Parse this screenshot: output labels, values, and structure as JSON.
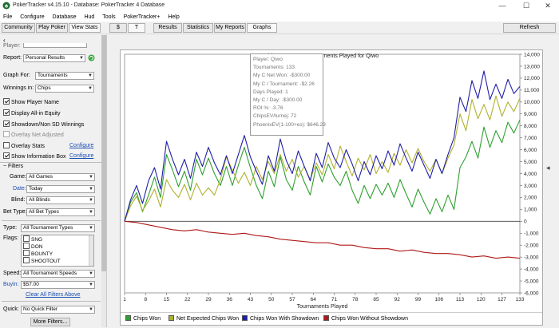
{
  "window": {
    "title": "PokerTracker v4.15.10 - Database: PokerTracker 4 Database",
    "controls": [
      "—",
      "☐",
      "✕"
    ]
  },
  "menu": [
    "File",
    "Configure",
    "Database",
    "Hud",
    "Tools",
    "PokerTracker+",
    "Help"
  ],
  "toolbar": {
    "tabs": [
      "Community",
      "Play Poker",
      "View Stats"
    ],
    "game_toggle": [
      "$",
      "T"
    ],
    "report_tabs": [
      "Results",
      "Statistics",
      "My Reports",
      "Graphs"
    ],
    "refresh": "Refresh"
  },
  "left_panel": {
    "player_label": "Player:",
    "report_label": "Report:",
    "report_value": "Personal Results",
    "graph_for_label": "Graph For:",
    "graph_for_value": "Tournaments",
    "winnings_in_label": "Winnings in:",
    "winnings_in_value": "Chips",
    "options": [
      {
        "label": "Show Player Name",
        "checked": true,
        "disabled": false
      },
      {
        "label": "Display All-in Equity",
        "checked": true,
        "disabled": false
      },
      {
        "label": "Showdown/Non SD Winnings",
        "checked": true,
        "disabled": false
      },
      {
        "label": "Overlay Net Adjusted",
        "checked": false,
        "disabled": true
      },
      {
        "label": "Overlay Stats",
        "checked": false,
        "disabled": false
      },
      {
        "label": "Show Information Box",
        "checked": true,
        "disabled": false
      }
    ],
    "configure": "Configure",
    "filters_header": "Filters",
    "game_label": "Game:",
    "game_value": "All Games",
    "date_label": "Date:",
    "date_value": "Today",
    "blind_label": "Blind:",
    "blind_value": "All Blinds",
    "bet_type_label": "Bet Type:",
    "bet_type_value": "All Bet Types",
    "type_label": "Type:",
    "type_value": "All Tournament Types",
    "flags_label": "Flags:",
    "flags": [
      "SNG",
      "DON",
      "BOUNTY",
      "SHOOTOUT"
    ],
    "speed_label": "Speed:",
    "speed_value": "All Tournament Speeds",
    "buyin_label": "Buyin:",
    "buyin_value": "$57.00",
    "clear_filters": "Clear All Filters Above",
    "quick_label": "Quick:",
    "quick_value": "No Quick Filter",
    "more_filters": "More Filters..."
  },
  "info_box": {
    "lines": [
      "Player: Qiwo",
      "Tournaments: 133",
      "My C Net Won: -$300.00",
      "My C / Tournament: -$2.26",
      "Days Played: 1",
      "My C / Day: -$300.00",
      "ROI %: -3.76",
      "ChipsEV/turnej: 72",
      "PhoenixEV(1-100+es): $646.23"
    ]
  },
  "colors": {
    "chips_won": "#2ea02e",
    "net_expected": "#b0b030",
    "with_showdown": "#1f1fa8",
    "without_showdown": "#b01818"
  },
  "chart_data": {
    "type": "line",
    "title": "Chips Won over Tournaments Played for  Qiwo",
    "xlabel": "Tournaments Played",
    "ylabel": "",
    "x_ticks": [
      "1",
      "8",
      "15",
      "22",
      "29",
      "36",
      "43",
      "50",
      "57",
      "64",
      "71",
      "78",
      "85",
      "92",
      "99",
      "106",
      "113",
      "120",
      "127",
      "133"
    ],
    "y_ticks": [
      "14,000",
      "13,000",
      "12,000",
      "11,000",
      "10,000",
      "9,000",
      "8,000",
      "7,000",
      "6,000",
      "5,000",
      "4,000",
      "3,000",
      "2,000",
      "1,000",
      "0",
      "-1,000",
      "-2,000",
      "-3,000",
      "-4,000",
      "-5,000",
      "-6,000"
    ],
    "xlim": [
      1,
      133
    ],
    "ylim": [
      -6000,
      14000
    ],
    "series": [
      {
        "name": "Chips Won",
        "color": "#2ea02e",
        "points": [
          [
            1,
            0
          ],
          [
            3,
            1600
          ],
          [
            5,
            2400
          ],
          [
            7,
            800
          ],
          [
            9,
            2200
          ],
          [
            11,
            3700
          ],
          [
            13,
            2000
          ],
          [
            15,
            5600
          ],
          [
            17,
            4300
          ],
          [
            19,
            2900
          ],
          [
            21,
            4200
          ],
          [
            23,
            2600
          ],
          [
            25,
            5200
          ],
          [
            27,
            3900
          ],
          [
            29,
            5300
          ],
          [
            31,
            4000
          ],
          [
            33,
            3000
          ],
          [
            35,
            4600
          ],
          [
            37,
            3000
          ],
          [
            39,
            4700
          ],
          [
            41,
            6200
          ],
          [
            43,
            4500
          ],
          [
            45,
            3000
          ],
          [
            47,
            1900
          ],
          [
            49,
            4200
          ],
          [
            51,
            2900
          ],
          [
            53,
            5400
          ],
          [
            55,
            3500
          ],
          [
            57,
            2600
          ],
          [
            59,
            4600
          ],
          [
            61,
            3300
          ],
          [
            63,
            2200
          ],
          [
            65,
            4600
          ],
          [
            67,
            3300
          ],
          [
            69,
            4800
          ],
          [
            71,
            3700
          ],
          [
            73,
            3000
          ],
          [
            75,
            4200
          ],
          [
            77,
            2600
          ],
          [
            79,
            1500
          ],
          [
            81,
            3000
          ],
          [
            83,
            1900
          ],
          [
            85,
            3100
          ],
          [
            87,
            2200
          ],
          [
            89,
            3200
          ],
          [
            91,
            2000
          ],
          [
            93,
            3500
          ],
          [
            95,
            2300
          ],
          [
            97,
            1200
          ],
          [
            99,
            2700
          ],
          [
            101,
            1600
          ],
          [
            103,
            600
          ],
          [
            105,
            1900
          ],
          [
            107,
            800
          ],
          [
            109,
            2200
          ],
          [
            111,
            1000
          ],
          [
            113,
            4500
          ],
          [
            115,
            5400
          ],
          [
            117,
            6700
          ],
          [
            119,
            5300
          ],
          [
            121,
            7900
          ],
          [
            123,
            6200
          ],
          [
            125,
            7600
          ],
          [
            127,
            6600
          ],
          [
            129,
            8300
          ],
          [
            131,
            7400
          ],
          [
            133,
            8500
          ]
        ]
      },
      {
        "name": "Net Expected Chips Won",
        "color": "#b0b030",
        "points": [
          [
            1,
            0
          ],
          [
            3,
            1300
          ],
          [
            5,
            2100
          ],
          [
            7,
            900
          ],
          [
            9,
            1700
          ],
          [
            11,
            2700
          ],
          [
            13,
            1200
          ],
          [
            15,
            3500
          ],
          [
            17,
            2600
          ],
          [
            19,
            2000
          ],
          [
            21,
            3100
          ],
          [
            23,
            1800
          ],
          [
            25,
            3200
          ],
          [
            27,
            2200
          ],
          [
            29,
            2800
          ],
          [
            31,
            2200
          ],
          [
            33,
            3500
          ],
          [
            35,
            5400
          ],
          [
            37,
            4300
          ],
          [
            39,
            3200
          ],
          [
            41,
            4100
          ],
          [
            43,
            3000
          ],
          [
            45,
            4600
          ],
          [
            47,
            3500
          ],
          [
            49,
            5000
          ],
          [
            51,
            4000
          ],
          [
            53,
            5600
          ],
          [
            55,
            4200
          ],
          [
            57,
            5200
          ],
          [
            59,
            3700
          ],
          [
            61,
            4600
          ],
          [
            63,
            3500
          ],
          [
            65,
            4900
          ],
          [
            67,
            3900
          ],
          [
            69,
            5600
          ],
          [
            71,
            4400
          ],
          [
            73,
            6300
          ],
          [
            75,
            5000
          ],
          [
            77,
            3800
          ],
          [
            79,
            5300
          ],
          [
            81,
            4300
          ],
          [
            83,
            5600
          ],
          [
            85,
            4000
          ],
          [
            87,
            5000
          ],
          [
            89,
            4100
          ],
          [
            91,
            5700
          ],
          [
            93,
            4700
          ],
          [
            95,
            6000
          ],
          [
            97,
            4900
          ],
          [
            99,
            6100
          ],
          [
            101,
            5000
          ],
          [
            103,
            4200
          ],
          [
            105,
            5200
          ],
          [
            107,
            4000
          ],
          [
            109,
            5300
          ],
          [
            111,
            6400
          ],
          [
            113,
            9000
          ],
          [
            115,
            7600
          ],
          [
            117,
            10200
          ],
          [
            119,
            8600
          ],
          [
            121,
            9800
          ],
          [
            123,
            8500
          ],
          [
            125,
            10500
          ],
          [
            127,
            8800
          ],
          [
            129,
            10000
          ],
          [
            131,
            9200
          ],
          [
            133,
            10300
          ]
        ]
      },
      {
        "name": "Chips Won With Showdown",
        "color": "#1f1fa8",
        "points": [
          [
            1,
            0
          ],
          [
            3,
            1800
          ],
          [
            5,
            3000
          ],
          [
            7,
            1500
          ],
          [
            9,
            3400
          ],
          [
            11,
            4500
          ],
          [
            13,
            2700
          ],
          [
            15,
            6700
          ],
          [
            17,
            5200
          ],
          [
            19,
            3900
          ],
          [
            21,
            5200
          ],
          [
            23,
            3600
          ],
          [
            25,
            5800
          ],
          [
            27,
            4600
          ],
          [
            29,
            6200
          ],
          [
            31,
            4900
          ],
          [
            33,
            3900
          ],
          [
            35,
            5500
          ],
          [
            37,
            4000
          ],
          [
            39,
            5600
          ],
          [
            41,
            7200
          ],
          [
            43,
            5400
          ],
          [
            45,
            4200
          ],
          [
            47,
            3100
          ],
          [
            49,
            5500
          ],
          [
            51,
            4200
          ],
          [
            53,
            6900
          ],
          [
            55,
            5100
          ],
          [
            57,
            4000
          ],
          [
            59,
            5900
          ],
          [
            61,
            4600
          ],
          [
            63,
            3400
          ],
          [
            65,
            5700
          ],
          [
            67,
            4500
          ],
          [
            69,
            6600
          ],
          [
            71,
            5300
          ],
          [
            73,
            4500
          ],
          [
            75,
            6000
          ],
          [
            77,
            4800
          ],
          [
            79,
            3400
          ],
          [
            81,
            5000
          ],
          [
            83,
            3900
          ],
          [
            85,
            5500
          ],
          [
            87,
            4400
          ],
          [
            89,
            5900
          ],
          [
            91,
            4700
          ],
          [
            93,
            6500
          ],
          [
            95,
            5300
          ],
          [
            97,
            4200
          ],
          [
            99,
            5800
          ],
          [
            101,
            4700
          ],
          [
            103,
            3600
          ],
          [
            105,
            5200
          ],
          [
            107,
            4000
          ],
          [
            109,
            5600
          ],
          [
            111,
            7000
          ],
          [
            113,
            10400
          ],
          [
            115,
            9200
          ],
          [
            117,
            11800
          ],
          [
            119,
            10300
          ],
          [
            121,
            12600
          ],
          [
            123,
            10200
          ],
          [
            125,
            11500
          ],
          [
            127,
            10300
          ],
          [
            129,
            11900
          ],
          [
            131,
            10700
          ],
          [
            133,
            11300
          ]
        ]
      },
      {
        "name": "Chips Won Without Showdown",
        "color": "#b01818",
        "points": [
          [
            1,
            0
          ],
          [
            5,
            -100
          ],
          [
            9,
            -300
          ],
          [
            13,
            -500
          ],
          [
            17,
            -700
          ],
          [
            21,
            -800
          ],
          [
            25,
            -700
          ],
          [
            29,
            -900
          ],
          [
            33,
            -1000
          ],
          [
            37,
            -1100
          ],
          [
            41,
            -1000
          ],
          [
            45,
            -1200
          ],
          [
            49,
            -1300
          ],
          [
            53,
            -1500
          ],
          [
            57,
            -1600
          ],
          [
            61,
            -1700
          ],
          [
            65,
            -1800
          ],
          [
            69,
            -1800
          ],
          [
            73,
            -2000
          ],
          [
            77,
            -2000
          ],
          [
            81,
            -2200
          ],
          [
            85,
            -2300
          ],
          [
            89,
            -2300
          ],
          [
            93,
            -2500
          ],
          [
            97,
            -2400
          ],
          [
            101,
            -2600
          ],
          [
            105,
            -2700
          ],
          [
            109,
            -2700
          ],
          [
            113,
            -2800
          ],
          [
            117,
            -3000
          ],
          [
            121,
            -2900
          ],
          [
            125,
            -3100
          ],
          [
            129,
            -3000
          ],
          [
            133,
            -3100
          ]
        ]
      }
    ],
    "legend_position": "bottom",
    "grid": false
  }
}
